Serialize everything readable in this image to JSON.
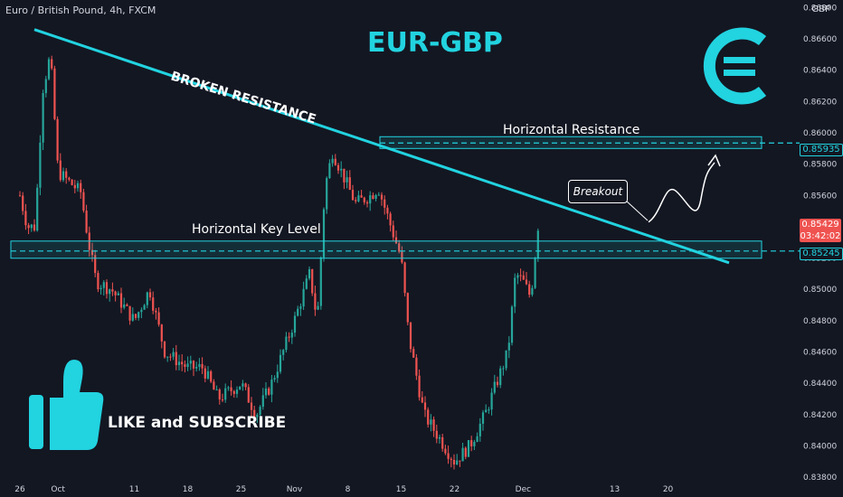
{
  "header": {
    "symbol_line": "Euro / British Pound, 4h, FXCM",
    "currency": "GBP"
  },
  "title": "EUR-GBP",
  "annotations": {
    "broken_resistance": "BROKEN RESISTANCE",
    "horizontal_resistance": "Horizontal Resistance",
    "horizontal_key_level": "Horizontal Key Level",
    "breakout": "Breakout",
    "like_subscribe": "LIKE and SUBSCRIBE"
  },
  "icons": {
    "euro": "euro-icon",
    "thumbs_up": "thumbs-up-icon"
  },
  "colors": {
    "background": "#131722",
    "accent": "#22d3e0",
    "bull": "#26a69a",
    "bear": "#ef5350",
    "text": "#d1d4dc"
  },
  "chart_data": {
    "type": "candlestick",
    "title": "EUR-GBP",
    "instrument": "Euro / British Pound",
    "timeframe": "4h",
    "source": "FXCM",
    "ylim": [
      0.8376,
      0.8682
    ],
    "yticks": [
      "0.83800",
      "0.84000",
      "0.84200",
      "0.84400",
      "0.84600",
      "0.84800",
      "0.85000",
      "0.85200",
      "0.85400",
      "0.85600",
      "0.85800",
      "0.86000",
      "0.86200",
      "0.86400",
      "0.86600",
      "0.86800"
    ],
    "xticks": [
      "26",
      "Oct",
      "11",
      "18",
      "25",
      "Nov",
      "8",
      "15",
      "22",
      "Dec",
      "13",
      "20"
    ],
    "current_price": "0.85429",
    "countdown": "03:42:02",
    "levels": [
      {
        "name": "Horizontal Resistance",
        "value": 0.85935,
        "label": "0.85935"
      },
      {
        "name": "Horizontal Key Level",
        "value": 0.85245,
        "label": "0.85245"
      }
    ],
    "series": [
      {
        "kind": "close",
        "points": [
          [
            "Sep 26",
            0.856
          ],
          [
            "Sep 27",
            0.854
          ],
          [
            "Sep 28",
            0.854
          ],
          [
            "Sep 29",
            0.8628
          ],
          [
            "Sep 30",
            0.865
          ],
          [
            "Oct 1",
            0.8575
          ],
          [
            "Oct 4",
            0.8562
          ],
          [
            "Oct 5",
            0.853
          ],
          [
            "Oct 6",
            0.8505
          ],
          [
            "Oct 8",
            0.85
          ],
          [
            "Oct 11",
            0.848
          ],
          [
            "Oct 13",
            0.85
          ],
          [
            "Oct 15",
            0.846
          ],
          [
            "Oct 18",
            0.845
          ],
          [
            "Oct 20",
            0.845
          ],
          [
            "Oct 22",
            0.843
          ],
          [
            "Oct 25",
            0.844
          ],
          [
            "Oct 27",
            0.842
          ],
          [
            "Oct 29",
            0.844
          ],
          [
            "Nov 1",
            0.848
          ],
          [
            "Nov 3",
            0.851
          ],
          [
            "Nov 4",
            0.848
          ],
          [
            "Nov 5",
            0.8565
          ],
          [
            "Nov 6",
            0.8588
          ],
          [
            "Nov 9",
            0.8555
          ],
          [
            "Nov 11",
            0.856
          ],
          [
            "Nov 12",
            0.8565
          ],
          [
            "Nov 15",
            0.852
          ],
          [
            "Nov 16",
            0.847
          ],
          [
            "Nov 18",
            0.842
          ],
          [
            "Nov 22",
            0.839
          ],
          [
            "Nov 24",
            0.84
          ],
          [
            "Nov 26",
            0.842
          ],
          [
            "Nov 29",
            0.846
          ],
          [
            "Nov 30",
            0.851
          ],
          [
            "Dec 1",
            0.8505
          ],
          [
            "Dec 2",
            0.8495
          ],
          [
            "Dec 3",
            0.8543
          ]
        ]
      },
      {
        "kind": "projection",
        "points": [
          [
            "Dec 3",
            0.8543
          ],
          [
            "Dec 6",
            0.8565
          ],
          [
            "Dec 8",
            0.8565
          ],
          [
            "Dec 10",
            0.859
          ]
        ]
      }
    ],
    "trendline": {
      "name": "BROKEN RESISTANCE",
      "from": [
        "Sep 26",
        0.8666
      ],
      "to": [
        "Dec 17",
        0.8517
      ]
    },
    "grid": false
  }
}
